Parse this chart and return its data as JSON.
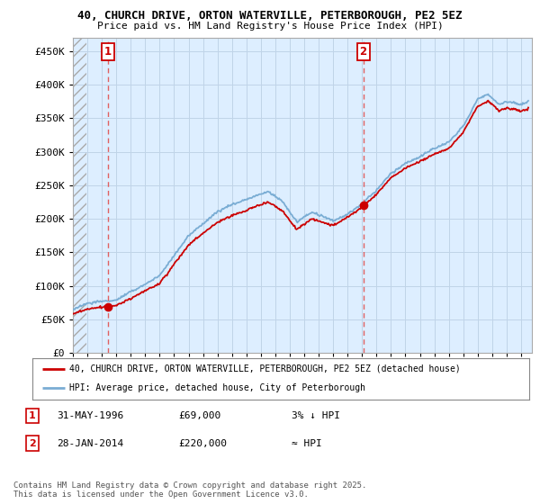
{
  "title1": "40, CHURCH DRIVE, ORTON WATERVILLE, PETERBOROUGH, PE2 5EZ",
  "title2": "Price paid vs. HM Land Registry's House Price Index (HPI)",
  "ylim": [
    0,
    470000
  ],
  "yticks": [
    0,
    50000,
    100000,
    150000,
    200000,
    250000,
    300000,
    350000,
    400000,
    450000
  ],
  "ytick_labels": [
    "£0",
    "£50K",
    "£100K",
    "£150K",
    "£200K",
    "£250K",
    "£300K",
    "£350K",
    "£400K",
    "£450K"
  ],
  "xlim_start": 1994.0,
  "xlim_end": 2025.75,
  "sale1_x": 1996.42,
  "sale1_y": 69000,
  "sale1_label": "1",
  "sale2_x": 2014.08,
  "sale2_y": 220000,
  "sale2_label": "2",
  "hatch_end_x": 1994.92,
  "bg_color": "#ddeeff",
  "plot_bg": "#ffffff",
  "grid_color": "#c0d4e8",
  "red_line_color": "#cc0000",
  "blue_line_color": "#7aadd4",
  "sale_dot_color": "#cc0000",
  "dashed_line_color": "#e06060",
  "legend_line1": "40, CHURCH DRIVE, ORTON WATERVILLE, PETERBOROUGH, PE2 5EZ (detached house)",
  "legend_line2": "HPI: Average price, detached house, City of Peterborough",
  "note1_label": "1",
  "note1_date": "31-MAY-1996",
  "note1_price": "£69,000",
  "note1_hpi": "3% ↓ HPI",
  "note2_label": "2",
  "note2_date": "28-JAN-2014",
  "note2_price": "£220,000",
  "note2_hpi": "≈ HPI",
  "footer": "Contains HM Land Registry data © Crown copyright and database right 2025.\nThis data is licensed under the Open Government Licence v3.0."
}
